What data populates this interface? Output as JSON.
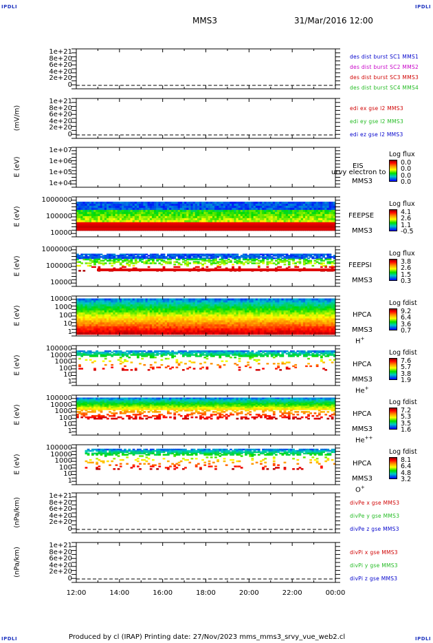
{
  "corner_left": "IPDLI",
  "corner_right": "IPDLI",
  "header": {
    "spacecraft": "MMS3",
    "datetime": "31/Mar/2016 12:00"
  },
  "footer": "Produced by cl (IRAP)   Printing date: 27/Nov/2023   mms_mms3_srvy_vue_web2.cl",
  "xaxis": {
    "ticks": [
      "12:00",
      "14:00",
      "16:00",
      "18:00",
      "20:00",
      "22:00",
      "00:00"
    ]
  },
  "colors": {
    "red": "#d00000",
    "magenta": "#c800c8",
    "green": "#22bb22",
    "blue": "#0000cc"
  },
  "panels": [
    {
      "id": "p1",
      "type": "line",
      "ylabel": "",
      "yticks": [
        "1e+21",
        "8e+20",
        "6e+20",
        "4e+20",
        "2e+20",
        "0"
      ],
      "legend": [
        {
          "text": "des dist burst SC1 MMS1",
          "color": "#0000cc"
        },
        {
          "text": "des dist burst SC2 MMS2",
          "color": "#c800c8"
        },
        {
          "text": "des dist burst SC3 MMS3",
          "color": "#d00000"
        },
        {
          "text": "des dist burst SC4 MMS4",
          "color": "#22bb22"
        }
      ]
    },
    {
      "id": "p2",
      "type": "line",
      "ylabel": "(mV/m)",
      "yticks": [
        "1e+21",
        "8e+20",
        "6e+20",
        "4e+20",
        "2e+20",
        "0"
      ],
      "legend": [
        {
          "text": "edi ex gse l2 MMS3",
          "color": "#d00000"
        },
        {
          "text": "edi ey gse l2 MMS3",
          "color": "#22bb22"
        },
        {
          "text": "edi ez gse l2 MMS3",
          "color": "#0000cc"
        }
      ]
    },
    {
      "id": "p3",
      "type": "spectro",
      "ylabel": "E (eV)",
      "yticks": [
        "1e+07",
        "1e+06",
        "1e+05",
        "1e+04"
      ],
      "right": [
        "EIS",
        "MMS3"
      ],
      "overlay": "urvy electron to",
      "cb_title": "Log flux",
      "cb_values": [
        "0.0",
        "0.0",
        "0.0",
        "0.0"
      ]
    },
    {
      "id": "p4",
      "type": "spectro",
      "ylabel": "E (eV)",
      "yticks": [
        "1000000",
        "100000",
        "10000"
      ],
      "right": [
        "FEEPSE",
        "MMS3"
      ],
      "cb_title": "Log flux",
      "cb_values": [
        "4.1",
        "2.6",
        "1.1",
        "-0.5"
      ]
    },
    {
      "id": "p5",
      "type": "spectro",
      "ylabel": "E (eV)",
      "yticks": [
        "1000000",
        "100000",
        "10000"
      ],
      "right": [
        "FEEPSI",
        "MMS3"
      ],
      "cb_title": "Log flux",
      "cb_values": [
        "3.8",
        "2.6",
        "1.5",
        "0.3"
      ]
    },
    {
      "id": "p6",
      "type": "spectro",
      "ylabel": "E (eV)",
      "yticks": [
        "10000",
        "1000",
        "100",
        "10",
        "1"
      ],
      "right": [
        "HPCA",
        "MMS3"
      ],
      "species": "H",
      "species_sup": "+",
      "cb_title": "Log fdist",
      "cb_values": [
        "9.2",
        "6.4",
        "3.6",
        "0.7"
      ]
    },
    {
      "id": "p7",
      "type": "spectro",
      "ylabel": "E (eV)",
      "yticks": [
        "100000",
        "10000",
        "1000",
        "100",
        "10",
        "1"
      ],
      "right": [
        "HPCA",
        "MMS3"
      ],
      "species": "He",
      "species_sup": "+",
      "cb_title": "Log fdist",
      "cb_values": [
        "7.6",
        "5.7",
        "3.8",
        "1.9"
      ]
    },
    {
      "id": "p8",
      "type": "spectro",
      "ylabel": "E (eV)",
      "yticks": [
        "100000",
        "10000",
        "1000",
        "100",
        "10",
        "1"
      ],
      "right": [
        "HPCA",
        "MMS3"
      ],
      "species": "He",
      "species_sup": "++",
      "cb_title": "Log fdist",
      "cb_values": [
        "7.2",
        "5.3",
        "3.5",
        "1.6"
      ]
    },
    {
      "id": "p9",
      "type": "spectro",
      "ylabel": "E (eV)",
      "yticks": [
        "100000",
        "10000",
        "1000",
        "100",
        "10",
        "1"
      ],
      "right": [
        "HPCA",
        "MMS3"
      ],
      "species": "O",
      "species_sup": "+",
      "cb_title": "Log fdist",
      "cb_values": [
        "8.1",
        "6.4",
        "4.8",
        "3.2"
      ]
    },
    {
      "id": "p10",
      "type": "line",
      "ylabel": "(nPa/km)",
      "yticks": [
        "1e+21",
        "8e+20",
        "6e+20",
        "4e+20",
        "2e+20",
        "0"
      ],
      "legend": [
        {
          "text": "divPe x gse MMS3",
          "color": "#d00000"
        },
        {
          "text": "divPe y gse MMS3",
          "color": "#22bb22"
        },
        {
          "text": "divPe z gse MMS3",
          "color": "#0000cc"
        }
      ]
    },
    {
      "id": "p11",
      "type": "line",
      "ylabel": "(nPa/km)",
      "yticks": [
        "1e+21",
        "8e+20",
        "6e+20",
        "4e+20",
        "2e+20",
        "0"
      ],
      "legend": [
        {
          "text": "divPi x gse MMS3",
          "color": "#d00000"
        },
        {
          "text": "divPi y gse MMS3",
          "color": "#22bb22"
        },
        {
          "text": "divPi z gse MMS3",
          "color": "#0000cc"
        }
      ]
    }
  ],
  "chart_data": {
    "type": "heatmap",
    "title": "MMS3  31/Mar/2016 12:00",
    "x_range": [
      "12:00",
      "00:00"
    ],
    "x_ticks": [
      "12:00",
      "14:00",
      "16:00",
      "18:00",
      "20:00",
      "22:00",
      "00:00"
    ],
    "note": "multi-panel time series: line panels empty (values 0), energy spectrograms for EIS, FEEPS electrons, FEEPS ions, HPCA H+, He+, He++, O+"
  }
}
